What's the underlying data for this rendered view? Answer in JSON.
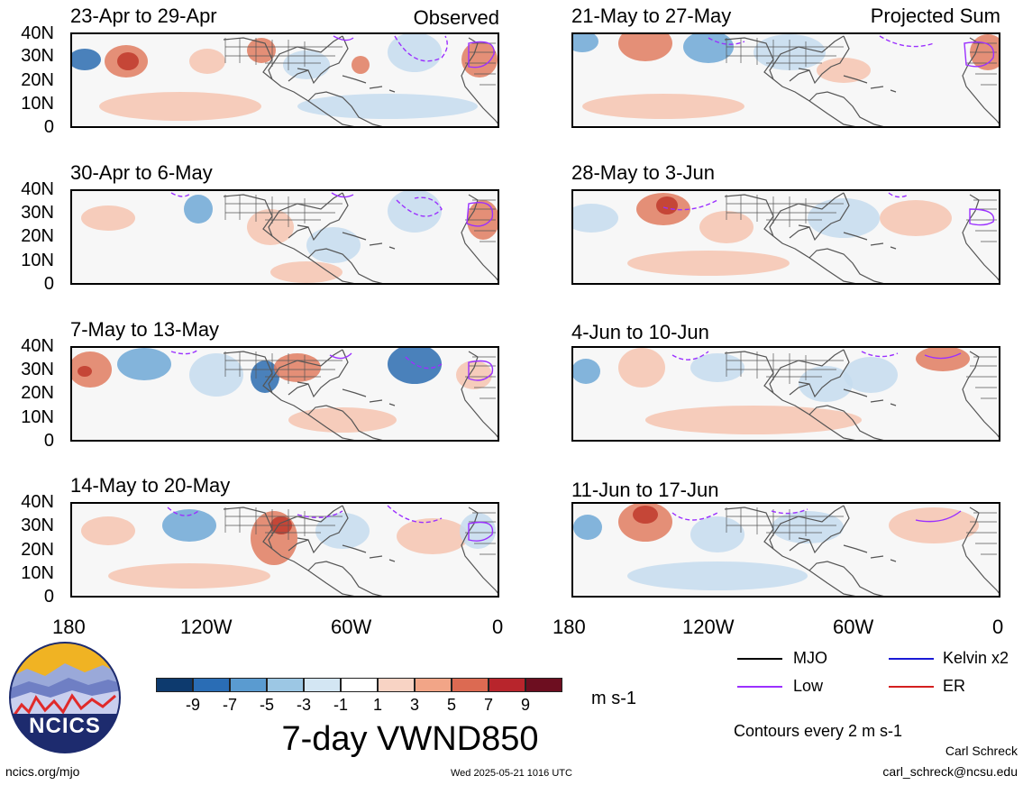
{
  "header": {
    "left_tag": "Observed",
    "right_tag": "Projected Sum"
  },
  "colors": {
    "strong_blue": "#2b6cb0",
    "mid_blue": "#6fa8d6",
    "light_blue": "#c6dcef",
    "light_red": "#f6c4b0",
    "mid_red": "#e07c60",
    "strong_red": "#c0392b",
    "contour_purple": "#9b30ff",
    "land_line": "#555555"
  },
  "panels": {
    "left": [
      {
        "title": "23-Apr to 29-Apr"
      },
      {
        "title": "30-Apr to 6-May"
      },
      {
        "title": "7-May to 13-May"
      },
      {
        "title": "14-May to 20-May"
      }
    ],
    "right": [
      {
        "title": "21-May to 27-May"
      },
      {
        "title": "28-May to 3-Jun"
      },
      {
        "title": "4-Jun to 10-Jun"
      },
      {
        "title": "11-Jun to 17-Jun"
      }
    ]
  },
  "y_axis": [
    "40N",
    "30N",
    "20N",
    "10N",
    "0"
  ],
  "x_axis": [
    "180",
    "120W",
    "60W",
    "0"
  ],
  "colorbar": {
    "colors": [
      "#0d3a6e",
      "#2a6db5",
      "#5a9bd0",
      "#9cc7e4",
      "#d3e6f3",
      "#ffffff",
      "#f8d3c4",
      "#f2a587",
      "#dc6a52",
      "#b8252c",
      "#6d0e20"
    ],
    "labels": [
      "-9",
      "-7",
      "-5",
      "-3",
      "-1",
      "1",
      "3",
      "5",
      "7",
      "9"
    ],
    "units": "m s-1",
    "title": "7-day VWND850"
  },
  "legend": {
    "items": [
      {
        "label": "MJO",
        "color": "#000000"
      },
      {
        "label": "Kelvin x2",
        "color": "#1a1ad6"
      },
      {
        "label": "Low",
        "color": "#9b30ff"
      },
      {
        "label": "ER",
        "color": "#d42020"
      }
    ],
    "note": "Contours every 2 m s-1"
  },
  "logo": {
    "text": "NCICS"
  },
  "footer": {
    "url": "ncics.org/mjo",
    "timestamp": "Wed 2025-05-21 1016 UTC",
    "author": "Carl Schreck",
    "email": "carl_schreck@ncsu.edu"
  }
}
